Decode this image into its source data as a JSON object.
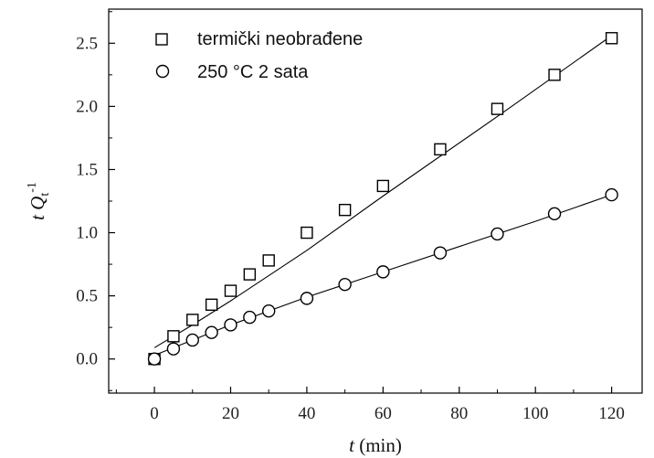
{
  "chart_data": {
    "type": "scatter",
    "xlabel": "t (min)",
    "ylabel": "t Qt-1",
    "xlim": [
      -12,
      128
    ],
    "ylim": [
      -0.27,
      2.77
    ],
    "xticks": [
      0,
      20,
      40,
      60,
      80,
      100,
      120
    ],
    "yticks": [
      0.0,
      0.5,
      1.0,
      1.5,
      2.0,
      2.5
    ],
    "x_tick_labels": [
      "0",
      "20",
      "40",
      "60",
      "80",
      "100",
      "120"
    ],
    "y_tick_labels": [
      "0.0",
      "0.5",
      "1.0",
      "1.5",
      "2.0",
      "2.5"
    ],
    "grid": false,
    "legend_position": "top-left",
    "series": [
      {
        "name": "termički neobrađene",
        "marker": "square",
        "x": [
          0,
          5,
          10,
          15,
          20,
          25,
          30,
          40,
          50,
          60,
          75,
          90,
          105,
          120
        ],
        "y": [
          0.0,
          0.18,
          0.31,
          0.43,
          0.54,
          0.67,
          0.78,
          1.0,
          1.18,
          1.37,
          1.66,
          1.98,
          2.25,
          2.54
        ],
        "fit": [
          [
            0,
            0.09
          ],
          [
            10,
            0.27
          ],
          [
            20,
            0.46
          ],
          [
            40,
            0.86
          ],
          [
            60,
            1.29
          ],
          [
            90,
            1.92
          ],
          [
            120,
            2.56
          ]
        ]
      },
      {
        "name": "250 °C 2 sata",
        "marker": "circle",
        "x": [
          0,
          5,
          10,
          15,
          20,
          25,
          30,
          40,
          50,
          60,
          75,
          90,
          105,
          120
        ],
        "y": [
          0.0,
          0.08,
          0.15,
          0.21,
          0.27,
          0.33,
          0.38,
          0.48,
          0.59,
          0.69,
          0.84,
          0.99,
          1.15,
          1.3
        ],
        "fit": [
          [
            0,
            0.03
          ],
          [
            10,
            0.15
          ],
          [
            20,
            0.27
          ],
          [
            40,
            0.49
          ],
          [
            60,
            0.69
          ],
          [
            80,
            0.89
          ],
          [
            100,
            1.09
          ],
          [
            120,
            1.3
          ]
        ]
      }
    ]
  }
}
